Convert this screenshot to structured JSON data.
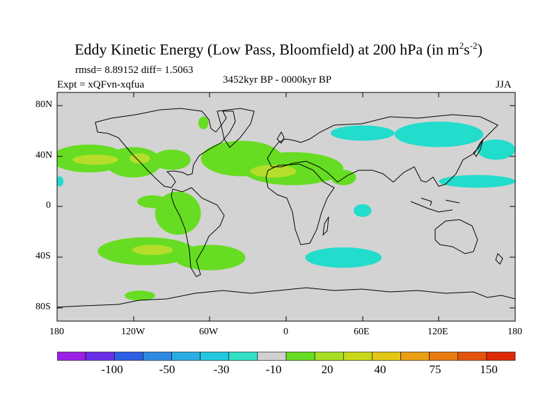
{
  "header": {
    "title_main": "Eddy Kinetic Energy (Low Pass, Bloomfield) at 200 hPa (in m",
    "title_sup1": "2",
    "title_mid": "s",
    "title_sup2": "-2",
    "title_end": ")",
    "stats": "rmsd= 8.89152 diff= 1.5063",
    "period": "3452kyr BP - 0000kyr BP",
    "expt": "Expt = xQFvn-xqfua",
    "season": "JJA"
  },
  "axes": {
    "lat_labels": [
      "80N",
      "40N",
      "0",
      "40S",
      "80S"
    ],
    "lon_labels": [
      "180",
      "120W",
      "60W",
      "0",
      "60E",
      "120E",
      "180"
    ]
  },
  "colorbar": {
    "colors": [
      "#9b1fe6",
      "#6a2fe8",
      "#2c5fe6",
      "#2d8ae2",
      "#29aee3",
      "#22c8e0",
      "#33e0c8",
      "#d0d0d0",
      "#66dd22",
      "#a8de22",
      "#c8d81a",
      "#e5c614",
      "#eaa012",
      "#e87a10",
      "#e4540c",
      "#de2a08"
    ],
    "labels": [
      "-100",
      "-50",
      "-30",
      "-10",
      "20",
      "40",
      "75",
      "150"
    ]
  },
  "colors": {
    "ocean_bg": "#d3d3d3",
    "green": "#66dd22",
    "yellow_green": "#b5dd2a",
    "cyan": "#22dccc"
  },
  "map": {
    "anomalies": [
      {
        "level": "green",
        "lon": -155,
        "lat": 38,
        "rlon": 30,
        "rlat": 11
      },
      {
        "level": "green",
        "lon": -120,
        "lat": 35,
        "rlon": 22,
        "rlat": 12
      },
      {
        "level": "yellow_green",
        "lon": -150,
        "lat": 37,
        "rlon": 18,
        "rlat": 4
      },
      {
        "level": "yellow_green",
        "lon": -115,
        "lat": 38,
        "rlon": 8,
        "rlat": 4
      },
      {
        "level": "green",
        "lon": -90,
        "lat": 37,
        "rlon": 15,
        "rlat": 8
      },
      {
        "level": "green",
        "lon": -35,
        "lat": 38,
        "rlon": 32,
        "rlat": 14
      },
      {
        "level": "green",
        "lon": 5,
        "lat": 30,
        "rlon": 40,
        "rlat": 13
      },
      {
        "level": "yellow_green",
        "lon": -10,
        "lat": 28,
        "rlon": 18,
        "rlat": 5
      },
      {
        "level": "green",
        "lon": 45,
        "lat": 23,
        "rlon": 10,
        "rlat": 6
      },
      {
        "level": "green",
        "lon": -105,
        "lat": 4,
        "rlon": 12,
        "rlat": 5
      },
      {
        "level": "green",
        "lon": -85,
        "lat": -5,
        "rlon": 18,
        "rlat": 17
      },
      {
        "level": "green",
        "lon": -110,
        "lat": -35,
        "rlon": 38,
        "rlat": 11
      },
      {
        "level": "yellow_green",
        "lon": -105,
        "lat": -34,
        "rlon": 16,
        "rlat": 4
      },
      {
        "level": "green",
        "lon": -60,
        "lat": -40,
        "rlon": 28,
        "rlat": 10
      },
      {
        "level": "green",
        "lon": -115,
        "lat": -70,
        "rlon": 12,
        "rlat": 4
      },
      {
        "level": "cyan",
        "lon": 60,
        "lat": 58,
        "rlon": 25,
        "rlat": 6
      },
      {
        "level": "cyan",
        "lon": 120,
        "lat": 57,
        "rlon": 35,
        "rlat": 10
      },
      {
        "level": "cyan",
        "lon": 165,
        "lat": 45,
        "rlon": 15,
        "rlat": 8
      },
      {
        "level": "cyan",
        "lon": 150,
        "lat": 20,
        "rlon": 30,
        "rlat": 5
      },
      {
        "level": "cyan",
        "lon": 60,
        "lat": -3,
        "rlon": 7,
        "rlat": 5
      },
      {
        "level": "cyan",
        "lon": 45,
        "lat": -40,
        "rlon": 30,
        "rlat": 8
      },
      {
        "level": "cyan",
        "lon": -178,
        "lat": 20,
        "rlon": 3,
        "rlat": 4
      },
      {
        "level": "green",
        "lon": -65,
        "lat": 66,
        "rlon": 4,
        "rlat": 5
      }
    ]
  }
}
